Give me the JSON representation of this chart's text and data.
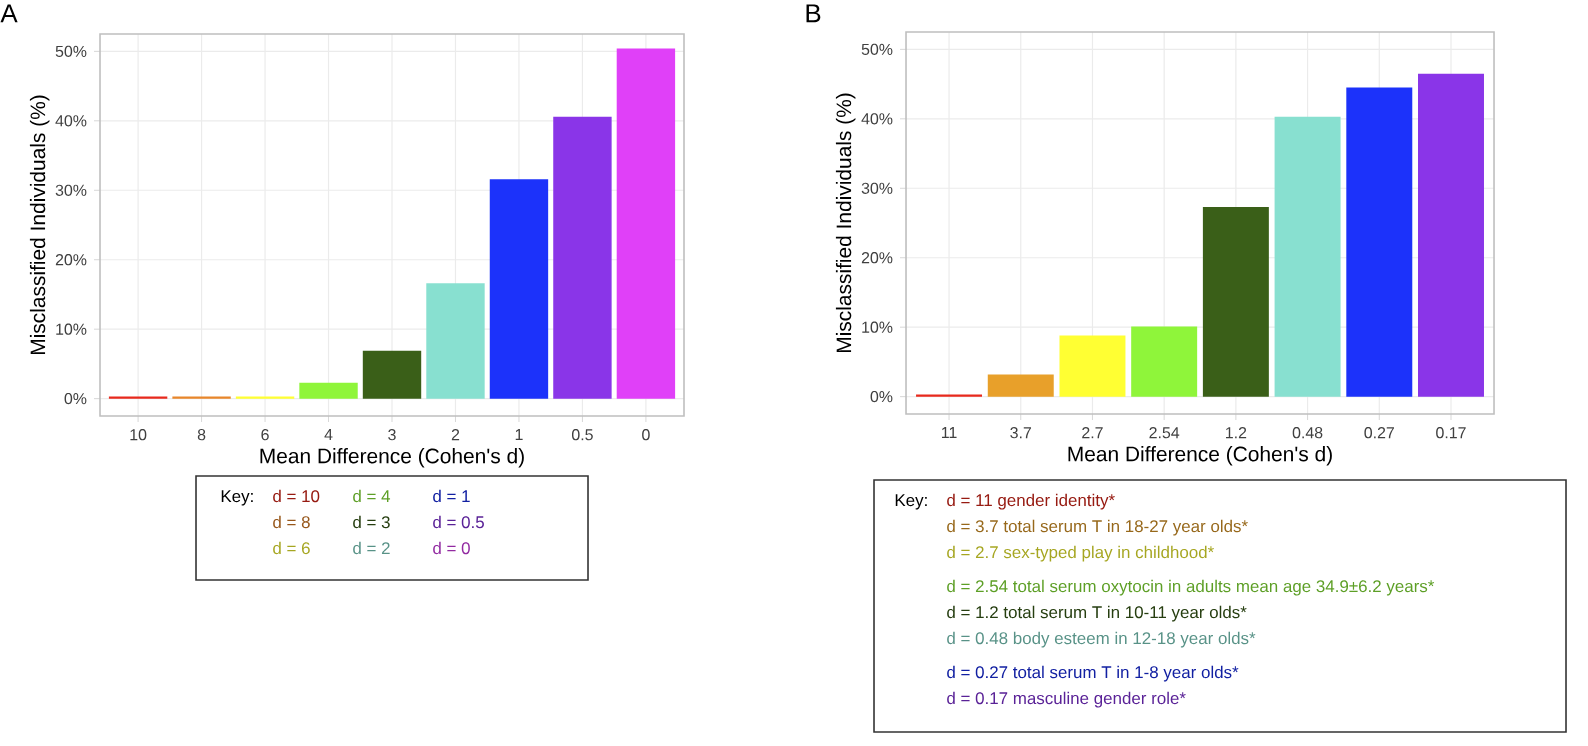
{
  "chart_data": [
    {
      "type": "bar",
      "title": "A",
      "xlabel": "Mean Difference (Cohen's d)",
      "ylabel": "Misclassified Individuals (%)",
      "categories": [
        "10",
        "8",
        "6",
        "4",
        "3",
        "2",
        "1",
        "0.5",
        "0"
      ],
      "values": [
        0.3,
        0.3,
        0.3,
        2.3,
        6.9,
        16.6,
        31.6,
        40.6,
        50.4
      ],
      "colors": [
        "#e8291c",
        "#e8862a",
        "#ffff33",
        "#8ff53a",
        "#3a5f18",
        "#88e0d0",
        "#1c32fa",
        "#8a35e8",
        "#e040f8"
      ],
      "ylim": [
        -2.5,
        52.5
      ],
      "yticks": [
        {
          "value": 0,
          "label": "0%"
        },
        {
          "value": 10,
          "label": "10%"
        },
        {
          "value": 20,
          "label": "20%"
        },
        {
          "value": 30,
          "label": "30%"
        },
        {
          "value": 40,
          "label": "40%"
        },
        {
          "value": 50,
          "label": "50%"
        }
      ],
      "grid": true,
      "annotations": [
        "Key:",
        "d = 10",
        "d = 8",
        "d = 6",
        "d = 4",
        "d = 3",
        "d = 2",
        "d = 1",
        "d = 0.5",
        "d = 0"
      ]
    },
    {
      "type": "bar",
      "title": "B",
      "xlabel": "Mean Difference (Cohen's d)",
      "ylabel": "Misclassified Individuals (%)",
      "categories": [
        "11",
        "3.7",
        "2.7",
        "2.54",
        "1.2",
        "0.48",
        "0.27",
        "0.17"
      ],
      "values": [
        0.3,
        3.2,
        8.8,
        10.1,
        27.3,
        40.3,
        44.5,
        46.5
      ],
      "colors": [
        "#e8291c",
        "#e8a02a",
        "#ffff33",
        "#8ff53a",
        "#3a5f18",
        "#88e0d0",
        "#1c32fa",
        "#8a35e8"
      ],
      "ylim": [
        -2.5,
        52.5
      ],
      "yticks": [
        {
          "value": 0,
          "label": "0%"
        },
        {
          "value": 10,
          "label": "10%"
        },
        {
          "value": 20,
          "label": "20%"
        },
        {
          "value": 30,
          "label": "30%"
        },
        {
          "value": 40,
          "label": "40%"
        },
        {
          "value": 50,
          "label": "50%"
        }
      ],
      "grid": true,
      "annotations": [
        "Key:",
        "d = 11 gender identity*",
        "d = 3.7  total serum T in 18-27 year olds*",
        "d = 2.7 sex-typed play in childhood*",
        "d = 2.54 total serum oxytocin in adults mean age 34.9±6.2 years*",
        "d = 1.2 total serum T in 10-11 year olds*",
        "d = 0.48 body esteem in 12-18 year olds*",
        "d = 0.27 total serum T in 1-8 year olds*",
        "d = 0.17 masculine gender role*"
      ]
    }
  ]
}
